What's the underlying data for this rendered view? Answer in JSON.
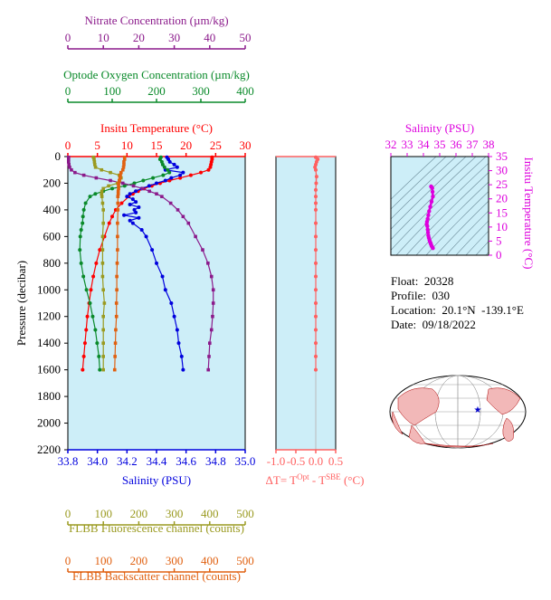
{
  "colors": {
    "nitrate": "#8b1a8b",
    "oxygen": "#0a8a2a",
    "temperature": "#ff0000",
    "salinity": "#0000dd",
    "fluorescence": "#9a9a20",
    "backscatter": "#e06010",
    "delta_t": "#ff6060",
    "ts_axis": "#dd00dd",
    "panel_bg": "#cdeef8"
  },
  "info": {
    "float_label": "Float:",
    "float_value": "20328",
    "profile_label": "Profile:",
    "profile_value": "030",
    "location_label": "Location:",
    "location_value": "20.1°N  -139.1°E",
    "date_label": "Date:",
    "date_value": "09/18/2022"
  },
  "chart_data": [
    {
      "type": "line",
      "id": "profile-main",
      "ylabel": "Pressure (decibar)",
      "ylim": [
        2200,
        0
      ],
      "yticks": [
        0,
        200,
        400,
        600,
        800,
        1000,
        1200,
        1400,
        1600,
        1800,
        2000,
        2200
      ],
      "axes": {
        "nitrate": {
          "label": "Nitrate Concentration (µm/kg)",
          "range": [
            0,
            50
          ],
          "ticks": [
            0,
            10,
            20,
            30,
            40,
            50
          ]
        },
        "oxygen": {
          "label": "Optode Oxygen Concentration (µm/kg)",
          "range": [
            0,
            400
          ],
          "ticks": [
            0,
            100,
            200,
            300,
            400
          ]
        },
        "temperature": {
          "label": "Insitu Temperature (°C)",
          "range": [
            0,
            30
          ],
          "ticks": [
            0,
            5,
            10,
            15,
            20,
            25,
            30
          ]
        },
        "salinity": {
          "label": "Salinity (PSU)",
          "range": [
            33.8,
            35.0
          ],
          "ticks": [
            "33.8",
            "34.0",
            "34.2",
            "34.4",
            "34.6",
            "34.8",
            "35.0"
          ]
        },
        "fluorescence": {
          "label": "FLBB Fluorescence channel (counts)",
          "range": [
            0,
            500
          ],
          "ticks": [
            0,
            100,
            200,
            300,
            400,
            500
          ]
        },
        "backscatter": {
          "label": "FLBB Backscatter channel (counts)",
          "range": [
            0,
            500
          ],
          "ticks": [
            0,
            100,
            200,
            300,
            400,
            500
          ]
        }
      },
      "series": [
        {
          "key": "temperature",
          "pressure": [
            5,
            20,
            40,
            60,
            80,
            100,
            120,
            140,
            160,
            180,
            200,
            220,
            240,
            260,
            280,
            300,
            350,
            400,
            450,
            500,
            600,
            700,
            800,
            900,
            1000,
            1100,
            1200,
            1300,
            1400,
            1500,
            1600
          ],
          "values": [
            24.4,
            24.4,
            24.3,
            24.2,
            24.1,
            23.8,
            22.5,
            20.8,
            19.0,
            17.2,
            15.6,
            14.2,
            12.9,
            11.9,
            11.0,
            10.3,
            9.1,
            8.1,
            7.5,
            7.0,
            6.2,
            5.4,
            4.8,
            4.3,
            3.9,
            3.6,
            3.3,
            3.1,
            2.9,
            2.7,
            2.5
          ]
        },
        {
          "key": "salinity",
          "pressure": [
            5,
            20,
            40,
            60,
            80,
            100,
            120,
            140,
            160,
            180,
            200,
            220,
            240,
            260,
            280,
            300,
            320,
            340,
            360,
            380,
            400,
            420,
            440,
            460,
            480,
            500,
            550,
            600,
            700,
            800,
            900,
            1000,
            1100,
            1200,
            1300,
            1400,
            1500,
            1600
          ],
          "values": [
            34.47,
            34.48,
            34.49,
            34.52,
            34.54,
            34.46,
            34.58,
            34.56,
            34.5,
            34.46,
            34.4,
            34.35,
            34.3,
            34.26,
            34.22,
            34.2,
            34.24,
            34.26,
            34.22,
            34.28,
            34.25,
            34.26,
            34.18,
            34.28,
            34.22,
            34.24,
            34.3,
            34.33,
            34.37,
            34.4,
            34.44,
            34.46,
            34.5,
            34.52,
            34.54,
            34.55,
            34.57,
            34.58
          ]
        },
        {
          "key": "oxygen",
          "pressure": [
            5,
            20,
            40,
            60,
            80,
            100,
            120,
            140,
            160,
            180,
            200,
            220,
            240,
            260,
            280,
            300,
            350,
            400,
            450,
            500,
            550,
            600,
            700,
            800,
            900,
            1000,
            1100,
            1200,
            1300,
            1400,
            1500,
            1600
          ],
          "values": [
            210,
            208,
            212,
            214,
            218,
            225,
            229,
            215,
            192,
            170,
            150,
            128,
            100,
            80,
            62,
            50,
            40,
            36,
            34,
            33,
            30,
            28,
            27,
            30,
            35,
            42,
            50,
            56,
            62,
            66,
            70,
            72
          ]
        },
        {
          "key": "nitrate",
          "pressure": [
            5,
            20,
            40,
            60,
            80,
            100,
            120,
            140,
            160,
            180,
            200,
            220,
            240,
            260,
            280,
            300,
            350,
            400,
            450,
            500,
            600,
            700,
            800,
            900,
            1000,
            1100,
            1200,
            1300,
            1400,
            1500,
            1600
          ],
          "values": [
            0.2,
            0.2,
            0.2,
            0.3,
            0.5,
            1.0,
            2.0,
            4.5,
            8.0,
            12.0,
            15.5,
            18.5,
            21.0,
            23.0,
            25.0,
            26.5,
            29.0,
            31.0,
            32.5,
            34.0,
            36.0,
            38.0,
            39.5,
            40.5,
            41.0,
            41.0,
            40.8,
            40.5,
            40.0,
            39.8,
            39.6
          ]
        },
        {
          "key": "fluorescence",
          "pressure": [
            5,
            20,
            40,
            60,
            80,
            100,
            120,
            140,
            160,
            180,
            200,
            220,
            240,
            260,
            280,
            300,
            350,
            400,
            500,
            600,
            700,
            800,
            900,
            1000,
            1100,
            1200,
            1300,
            1400,
            1500,
            1600
          ],
          "values": [
            72,
            74,
            75,
            76,
            78,
            95,
            120,
            145,
            150,
            146,
            140,
            115,
            100,
            96,
            95,
            96,
            98,
            100,
            100,
            98,
            98,
            98,
            98,
            100,
            103,
            100,
            100,
            100,
            100,
            100
          ]
        },
        {
          "key": "backscatter",
          "pressure": [
            5,
            20,
            40,
            60,
            80,
            100,
            120,
            140,
            160,
            180,
            200,
            220,
            240,
            260,
            280,
            300,
            350,
            400,
            500,
            600,
            700,
            800,
            900,
            1000,
            1100,
            1200,
            1300,
            1400,
            1500,
            1600
          ],
          "values": [
            160,
            160,
            158,
            158,
            157,
            155,
            150,
            148,
            147,
            145,
            143,
            143,
            143,
            142,
            142,
            141,
            141,
            141,
            140,
            140,
            140,
            139,
            138,
            138,
            137,
            137,
            135,
            134,
            133,
            132
          ]
        }
      ]
    },
    {
      "type": "line",
      "id": "delta-t",
      "xlabel": "ΔT= T^Opt - T^SBE (°C)",
      "xlim": [
        -1.0,
        0.5
      ],
      "xticks": [
        "-1.0",
        "-0.5",
        "0.0",
        "0.5"
      ],
      "ylim": [
        2200,
        0
      ],
      "series": [
        {
          "name": "delta_t",
          "pressure": [
            5,
            20,
            40,
            60,
            80,
            100,
            150,
            200,
            250,
            300,
            350,
            400,
            500,
            600,
            700,
            800,
            900,
            1000,
            1100,
            1200,
            1300,
            1400,
            1500,
            1600
          ],
          "values": [
            0.0,
            0.05,
            0.02,
            0.0,
            -0.02,
            0.0,
            0.02,
            0.01,
            0.0,
            0.0,
            0.0,
            0.0,
            0.0,
            0.0,
            0.0,
            0.0,
            0.0,
            0.0,
            0.0,
            0.0,
            0.0,
            0.0,
            0.0,
            0.0
          ]
        }
      ]
    },
    {
      "type": "scatter",
      "id": "ts-diagram",
      "xlabel": "Salinity (PSU)",
      "ylabel": "Insitu Temperature (°C)",
      "xlim": [
        32,
        38
      ],
      "ylim": [
        0,
        35
      ],
      "xticks": [
        "32",
        "33",
        "34",
        "35",
        "36",
        "37",
        "38"
      ],
      "yticks": [
        "0",
        "5",
        "10",
        "15",
        "20",
        "25",
        "30",
        "35"
      ],
      "series": [
        {
          "name": "ts",
          "x": [
            34.47,
            34.5,
            34.54,
            34.56,
            34.58,
            34.5,
            34.42,
            34.35,
            34.3,
            34.26,
            34.22,
            34.2,
            34.24,
            34.26,
            34.28,
            34.3,
            34.33,
            34.37,
            34.4,
            34.44,
            34.46,
            34.5,
            34.54,
            34.58
          ],
          "y": [
            24.4,
            24.2,
            23.8,
            22.5,
            20.8,
            19.0,
            17.2,
            15.6,
            14.2,
            12.9,
            11.9,
            11.0,
            10.3,
            9.1,
            8.1,
            7.0,
            6.2,
            5.4,
            4.8,
            4.3,
            3.9,
            3.3,
            2.9,
            2.5
          ]
        }
      ]
    }
  ]
}
